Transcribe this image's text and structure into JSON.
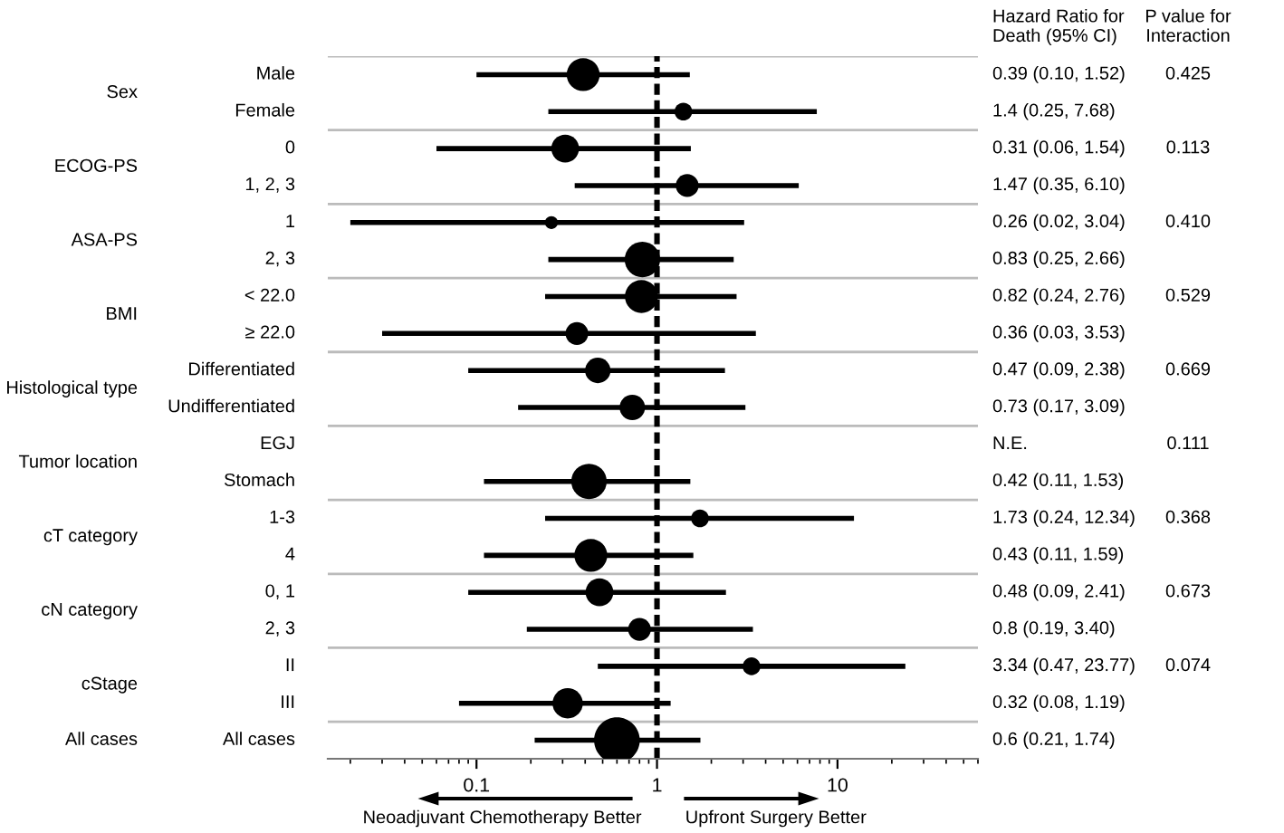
{
  "chart_data": {
    "type": "bubble",
    "orientation": "horizontal",
    "log": "x",
    "categories": [
      "Male",
      "Female",
      "0",
      "1, 2, 3",
      "1",
      "2, 3",
      "< 22.0",
      "≥ 22.0",
      "Differentiated",
      "Undifferentiated",
      "EGJ",
      "Stomach",
      "1-3",
      "4",
      "0, 1",
      "2, 3",
      "II",
      "III",
      "All cases"
    ],
    "values": [
      0.39,
      1.4,
      0.31,
      1.47,
      0.26,
      0.83,
      0.82,
      0.36,
      0.47,
      0.73,
      null,
      0.42,
      1.73,
      0.43,
      0.48,
      0.8,
      3.34,
      0.32,
      0.6
    ],
    "errors": [
      [
        0.1,
        1.52
      ],
      [
        0.25,
        7.68
      ],
      [
        0.06,
        1.54
      ],
      [
        0.35,
        6.1
      ],
      [
        0.02,
        3.04
      ],
      [
        0.25,
        2.66
      ],
      [
        0.24,
        2.76
      ],
      [
        0.03,
        3.53
      ],
      [
        0.09,
        2.38
      ],
      [
        0.17,
        3.09
      ],
      null,
      [
        0.11,
        1.53
      ],
      [
        0.24,
        12.34
      ],
      [
        0.11,
        1.59
      ],
      [
        0.09,
        2.41
      ],
      [
        0.19,
        3.4
      ],
      [
        0.47,
        23.77
      ],
      [
        0.08,
        1.19
      ],
      [
        0.21,
        1.74
      ]
    ],
    "sizes": [
      0.52,
      0.15,
      0.37,
      0.25,
      0.08,
      0.6,
      0.52,
      0.25,
      0.31,
      0.31,
      null,
      0.6,
      0.15,
      0.52,
      0.37,
      0.25,
      0.15,
      0.44,
      1
    ],
    "color": "#000000",
    "xlim": [
      0.015,
      60
    ],
    "xticks": [
      0.1,
      1,
      10
    ],
    "ref_lines": [
      {
        "axis": "x",
        "value": 1,
        "line_style": "dashed",
        "color": "#000000"
      }
    ],
    "annotations": [
      "Hazard Ratio for\nDeath (95% CI)",
      "P value for\nInteraction",
      "Neoadjuvant Chemotherapy Better",
      "Upfront Surgery Better",
      "0.39 (0.10, 1.52)",
      "1.4 (0.25, 7.68)",
      "0.31 (0.06, 1.54)",
      "1.47 (0.35, 6.10)",
      "0.26 (0.02, 3.04)",
      "0.83 (0.25, 2.66)",
      "0.82 (0.24, 2.76)",
      "0.36 (0.03, 3.53)",
      "0.47 (0.09, 2.38)",
      "0.73 (0.17, 3.09)",
      "N.E.",
      "0.42 (0.11, 1.53)",
      "1.73 (0.24, 12.34)",
      "0.43 (0.11, 1.59)",
      "0.48 (0.09, 2.41)",
      "0.8 (0.19, 3.40)",
      "3.34 (0.47, 23.77)",
      "0.32 (0.08, 1.19)",
      "0.6 (0.21, 1.74)",
      "Sex",
      "ECOG-PS",
      "ASA-PS",
      "BMI",
      "Histological type",
      "Tumor location",
      "cT category",
      "cN category",
      "cStage",
      "All cases",
      "0.425",
      "0.113",
      "0.410",
      "0.529",
      "0.669",
      "0.111",
      "0.368",
      "0.673",
      "0.074"
    ]
  }
}
